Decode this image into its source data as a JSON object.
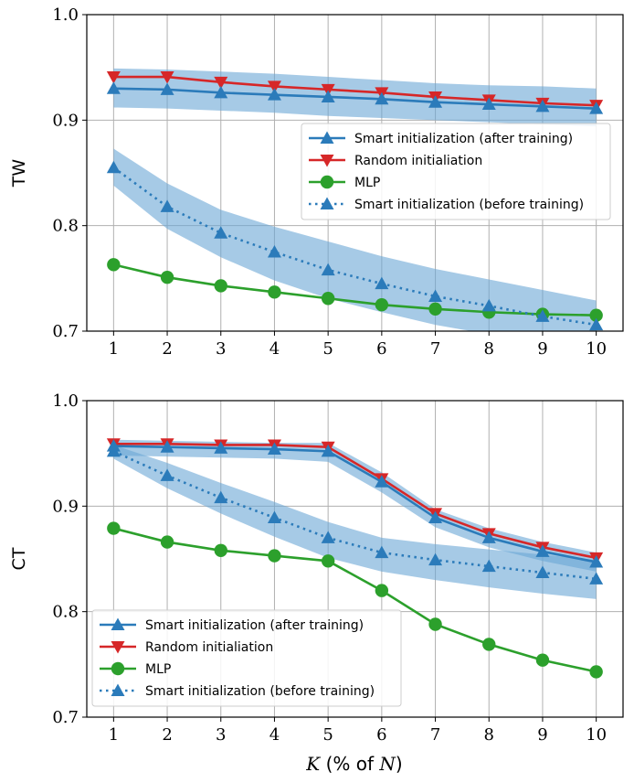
{
  "colors": {
    "smart_after": "#2b7bba",
    "random": "#d62728",
    "mlp": "#2ca02c",
    "band": "#6aa6d6",
    "grid": "#b0b0b0"
  },
  "x_axis_label": {
    "var": "K",
    "mid": " (% of ",
    "var2": "N",
    "end": ")"
  },
  "chart_data": [
    {
      "type": "line",
      "ylabel": "TW",
      "ylim": [
        0.7,
        1.0
      ],
      "xlim": [
        0.5,
        10.5
      ],
      "x": [
        1,
        2,
        3,
        4,
        5,
        6,
        7,
        8,
        9,
        10
      ],
      "xticks": [
        "1",
        "2",
        "3",
        "4",
        "5",
        "6",
        "7",
        "8",
        "9",
        "10"
      ],
      "yticks": [
        "0.7",
        "0.8",
        "0.9",
        "1.0"
      ],
      "ytick_values": [
        0.7,
        0.8,
        0.9,
        1.0
      ],
      "grid": true,
      "legend_placement": "center-right",
      "series": [
        {
          "name": "Smart initialization (after training)",
          "key": "smart_after",
          "style": "solid",
          "marker": "triangle-up",
          "values": [
            0.93,
            0.929,
            0.926,
            0.924,
            0.922,
            0.92,
            0.917,
            0.915,
            0.913,
            0.911
          ],
          "band": {
            "low": [
              0.912,
              0.911,
              0.909,
              0.907,
              0.904,
              0.902,
              0.9,
              0.898,
              0.896,
              0.894
            ],
            "high": [
              0.949,
              0.948,
              0.946,
              0.944,
              0.941,
              0.938,
              0.935,
              0.933,
              0.932,
              0.93
            ]
          }
        },
        {
          "name": "Random initialiation",
          "key": "random",
          "style": "solid",
          "marker": "triangle-down",
          "values": [
            0.941,
            0.941,
            0.936,
            0.932,
            0.929,
            0.926,
            0.922,
            0.919,
            0.916,
            0.914
          ]
        },
        {
          "name": "MLP",
          "key": "mlp",
          "style": "solid",
          "marker": "circle",
          "values": [
            0.763,
            0.751,
            0.743,
            0.737,
            0.731,
            0.725,
            0.721,
            0.718,
            0.716,
            0.715
          ]
        },
        {
          "name": "Smart initialization (before training)",
          "key": "smart_after",
          "style": "dotted",
          "marker": "triangle-up",
          "values": [
            0.855,
            0.818,
            0.793,
            0.775,
            0.758,
            0.745,
            0.733,
            0.724,
            0.714,
            0.706
          ],
          "band": {
            "low": [
              0.838,
              0.797,
              0.77,
              0.748,
              0.731,
              0.718,
              0.706,
              0.697,
              0.69,
              0.686
            ],
            "high": [
              0.873,
              0.84,
              0.815,
              0.799,
              0.785,
              0.771,
              0.759,
              0.749,
              0.739,
              0.729
            ]
          }
        }
      ]
    },
    {
      "type": "line",
      "ylabel": "CT",
      "xlabel": "K (% of N)",
      "ylim": [
        0.7,
        1.0
      ],
      "xlim": [
        0.5,
        10.5
      ],
      "x": [
        1,
        2,
        3,
        4,
        5,
        6,
        7,
        8,
        9,
        10
      ],
      "xticks": [
        "1",
        "2",
        "3",
        "4",
        "5",
        "6",
        "7",
        "8",
        "9",
        "10"
      ],
      "yticks": [
        "0.7",
        "0.8",
        "0.9",
        "1.0"
      ],
      "ytick_values": [
        0.7,
        0.8,
        0.9,
        1.0
      ],
      "grid": true,
      "legend_placement": "lower-left",
      "series": [
        {
          "name": "Smart initialization (after training)",
          "key": "smart_after",
          "style": "solid",
          "marker": "triangle-up",
          "values": [
            0.957,
            0.956,
            0.955,
            0.954,
            0.952,
            0.923,
            0.889,
            0.87,
            0.857,
            0.847
          ],
          "band": {
            "low": [
              0.948,
              0.947,
              0.946,
              0.945,
              0.942,
              0.913,
              0.88,
              0.861,
              0.848,
              0.838
            ],
            "high": [
              0.963,
              0.962,
              0.961,
              0.96,
              0.96,
              0.932,
              0.897,
              0.879,
              0.866,
              0.856
            ]
          }
        },
        {
          "name": "Random initialiation",
          "key": "random",
          "style": "solid",
          "marker": "triangle-down",
          "values": [
            0.959,
            0.959,
            0.958,
            0.958,
            0.956,
            0.926,
            0.893,
            0.874,
            0.861,
            0.851
          ]
        },
        {
          "name": "MLP",
          "key": "mlp",
          "style": "solid",
          "marker": "circle",
          "values": [
            0.879,
            0.866,
            0.858,
            0.853,
            0.848,
            0.82,
            0.788,
            0.769,
            0.754,
            0.743
          ]
        },
        {
          "name": "Smart initialization (before training)",
          "key": "smart_after",
          "style": "dotted",
          "marker": "triangle-up",
          "values": [
            0.952,
            0.929,
            0.908,
            0.889,
            0.87,
            0.856,
            0.849,
            0.843,
            0.837,
            0.831
          ],
          "band": {
            "low": [
              0.945,
              0.917,
              0.893,
              0.871,
              0.851,
              0.838,
              0.83,
              0.823,
              0.817,
              0.812
            ],
            "high": [
              0.958,
              0.941,
              0.922,
              0.904,
              0.885,
              0.87,
              0.864,
              0.859,
              0.854,
              0.849
            ]
          }
        }
      ]
    }
  ]
}
